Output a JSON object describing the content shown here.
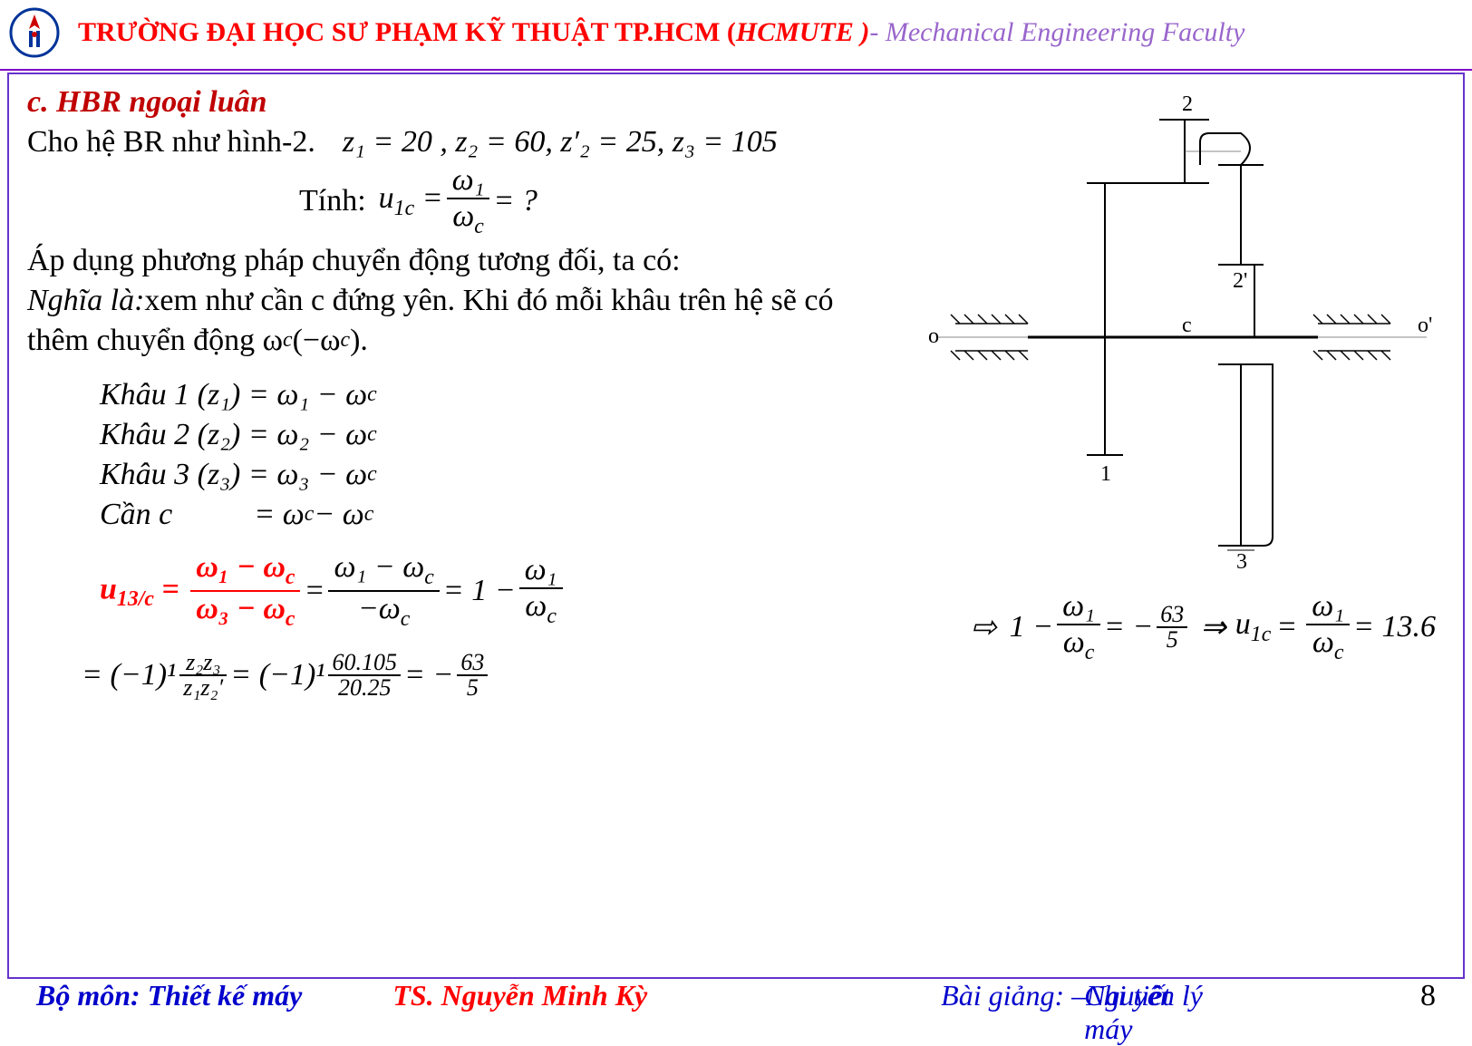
{
  "header": {
    "uni_name": "TRƯỜNG ĐẠI HỌC SƯ PHẠM KỸ THUẬT TP.HCM (",
    "uni_short": "HCMUTE )",
    "faculty": "- Mechanical Engineering Faculty"
  },
  "section": {
    "title": "c. HBR ngoại luân",
    "given_text": "Cho hệ BR như hình-2.",
    "params": "z₁ = 20 , z₂ = 60, z′₂ = 25, z₃ = 105",
    "calc_label": "Tính:",
    "u1c_label": "u",
    "u1c_sub": "1c",
    "frac_num1": "ω₁",
    "frac_den1": "ω",
    "question": "= ?",
    "method": "Áp dụng phương pháp chuyển động tương đối, ta có:",
    "meaning_lbl": "Nghĩa là:",
    "meaning_txt": " xem như cần c đứng yên. Khi đó mỗi khâu trên hệ sẽ có",
    "meaning_txt2": "thêm chuyển động ω",
    "meaning_txt3": " (−ω",
    "meaning_txt4": ").",
    "k1_lbl": "Khâu 1 (z₁) = ω₁ − ω",
    "k2_lbl": "Khâu 2 (z₂) = ω₂ − ω",
    "k3_lbl": "Khâu 3 (z₃) = ω₃ − ω",
    "kc_lbl": "Cần c",
    "kc_eq": "= ω",
    "kc_eq2": " − ω",
    "u13_lbl": "u",
    "u13_sub": "13/c",
    "u13_f1_num": "ω₁ − ω",
    "u13_f1_den": "ω₃ − ω",
    "u13_f2_num": "ω₁ − ω",
    "u13_f2_den": "−ω",
    "u13_eq3": "= 1 −",
    "u13_f3_num": "ω₁",
    "u13_f3_den": "ω",
    "line2_a": "= (−1)¹",
    "line2_f1_num": "z₂z₃",
    "line2_f1_den": "z₁z₂′",
    "line2_b": "= (−1)¹",
    "line2_f2_num": "60.105",
    "line2_f2_den": "20.25",
    "line2_c": "= −",
    "line2_f3_num": "63",
    "line2_f3_den": "5",
    "res_arrow": "⇨",
    "res_a": "1 −",
    "res_f1_num": "ω₁",
    "res_f1_den": "ω",
    "res_b": "= −",
    "res_f2_num": "63",
    "res_f2_den": "5",
    "res_arrow2": "⇒",
    "res_c": "u",
    "res_c_sub": "1c",
    "res_d": "=",
    "res_f3_num": "ω₁",
    "res_f3_den": "ω",
    "res_e": "= 13.6"
  },
  "diagram": {
    "labels": {
      "l2": "2",
      "l2p": "2'",
      "lo": "o",
      "lc": "c",
      "lop": "o'",
      "l1": "1",
      "l3": "3"
    },
    "colors": {
      "stroke": "#000000",
      "axis": "#666666"
    }
  },
  "footer": {
    "dept": "Bộ môn: Thiết kế máy",
    "author": "TS. Nguyễn Minh Kỳ",
    "lecture1": "Bài giảng:",
    "lecture2a": "–Nguyên lý",
    "lecture2b": "Chi tiết máy",
    "pagenum": "8"
  },
  "style": {
    "accent_red": "#ff0000",
    "accent_purple": "#9966cc",
    "border_purple": "#6633cc",
    "text": "#000000",
    "footer_blue": "#0000cc",
    "bg": "#ffffff",
    "body_fontsize_pt": 26,
    "header_fontsize_pt": 22
  }
}
